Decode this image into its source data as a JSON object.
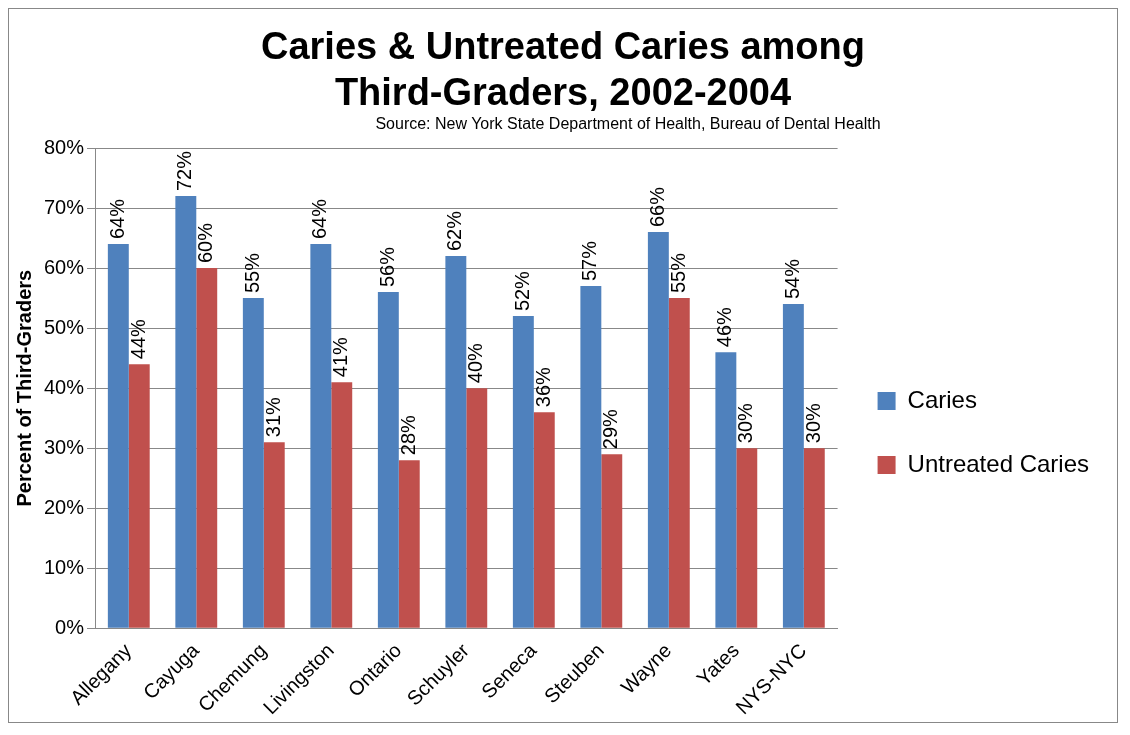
{
  "chart_data": {
    "type": "bar",
    "title": "Caries & Untreated Caries among Third-Graders, 2002-2004",
    "subtitle": "Source: New  York State Department of Health, Bureau of Dental Health",
    "ylabel": "Percent of Third-Graders",
    "categories": [
      "Allegany",
      "Cayuga",
      "Chemung",
      "Livingston",
      "Ontario",
      "Schuyler",
      "Seneca",
      "Steuben",
      "Wayne",
      "Yates",
      "NYS-NYC"
    ],
    "series": [
      {
        "name": "Caries",
        "color": "#4f81bd",
        "values": [
          64,
          72,
          55,
          64,
          56,
          62,
          52,
          57,
          66,
          46,
          54
        ],
        "value_labels": [
          "64%",
          "72%",
          "55%",
          "64%",
          "56%",
          "62%",
          "52%",
          "57%",
          "66%",
          "46%",
          "54%"
        ]
      },
      {
        "name": "Untreated Caries",
        "color": "#c0504d",
        "values": [
          44,
          60,
          31,
          41,
          28,
          40,
          36,
          29,
          55,
          30,
          30
        ],
        "value_labels": [
          "44%",
          "60%",
          "31%",
          "41%",
          "28%",
          "40%",
          "36%",
          "29%",
          "55%",
          "30%",
          "30%"
        ]
      }
    ],
    "ylim": [
      0,
      80
    ],
    "yticks": [
      {
        "value": 0,
        "label": "0%"
      },
      {
        "value": 10,
        "label": "10%"
      },
      {
        "value": 20,
        "label": "20%"
      },
      {
        "value": 30,
        "label": "30%"
      },
      {
        "value": 40,
        "label": "40%"
      },
      {
        "value": 50,
        "label": "50%"
      },
      {
        "value": 60,
        "label": "60%"
      },
      {
        "value": 70,
        "label": "70%"
      },
      {
        "value": 80,
        "label": "80%"
      }
    ],
    "grid": "y",
    "legend": "right"
  }
}
